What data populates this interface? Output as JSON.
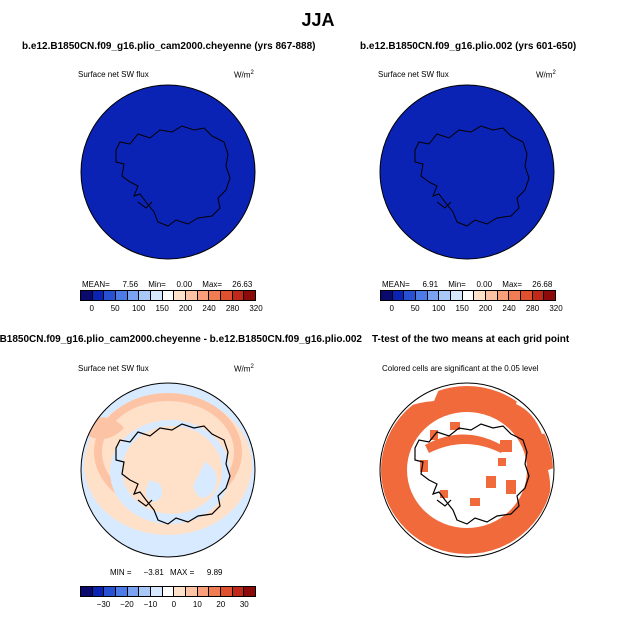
{
  "title": "JJA",
  "colors": {
    "ocean_deep_blue": "#0a23b4",
    "diff_peach": "#ffe0c8",
    "diff_orange_light": "#fcc4a4",
    "diff_blue_light": "#d8eaff",
    "ttest_orange": "#f06a3c",
    "coast": "#000000"
  },
  "panels": {
    "p1": {
      "title": "b.e12.B1850CN.f09_g16.plio_cam2000.cheyenne (yrs 867-888)",
      "subtitle": "Surface net SW flux",
      "units": "W/m",
      "units_sup": "2",
      "stats": {
        "mean_label": "MEAN=",
        "mean": "7.56",
        "min_label": "Min=",
        "min": "0.00",
        "max_label": "Max=",
        "max": "26.63"
      },
      "colorbar_labels": [
        "0",
        "50",
        "100",
        "150",
        "200",
        "240",
        "280",
        "320"
      ]
    },
    "p2": {
      "title": "b.e12.B1850CN.f09_g16.plio.002 (yrs 601-650)",
      "subtitle": "Surface net SW flux",
      "units": "W/m",
      "units_sup": "2",
      "stats": {
        "mean_label": "MEAN=",
        "mean": "6.91",
        "min_label": "Min=",
        "min": "0.00",
        "max_label": "Max=",
        "max": "26.68"
      },
      "colorbar_labels": [
        "0",
        "50",
        "100",
        "150",
        "200",
        "240",
        "280",
        "320"
      ]
    },
    "p3": {
      "title": "B1850CN.f09_g16.plio_cam2000.cheyenne - b.e12.B1850CN.f09_g16.plio.002",
      "subtitle": "Surface net SW flux",
      "units": "W/m",
      "units_sup": "2",
      "stats": {
        "min_label": "MIN =",
        "min": "−3.81",
        "max_label": "MAX =",
        "max": "9.89"
      },
      "colorbar_labels": [
        "−30",
        "−20",
        "−10",
        "0",
        "10",
        "20",
        "30"
      ]
    },
    "p4": {
      "title": "T-test of the two means at each grid point",
      "subtitle": "Colored cells are significant at the 0.05 level"
    }
  },
  "colorbars": {
    "abs": [
      "#0a0a6e",
      "#0a23b4",
      "#2850d2",
      "#4c7ae6",
      "#7aa2f0",
      "#a8c8f8",
      "#d6e8ff",
      "#ffffff",
      "#ffe0c8",
      "#fcc4a4",
      "#f8a07a",
      "#f07c54",
      "#e0502e",
      "#c0281a",
      "#8c0a0a"
    ],
    "diff": [
      "#0a0a6e",
      "#0a23b4",
      "#2850d2",
      "#4c7ae6",
      "#7aa2f0",
      "#a8c8f8",
      "#d6e8ff",
      "#ffffff",
      "#ffe0c8",
      "#fcc4a4",
      "#f8a07a",
      "#f07c54",
      "#e0502e",
      "#c0281a",
      "#8c0a0a"
    ]
  },
  "chart_data": [
    {
      "type": "heatmap",
      "title": "b.e12.B1850CN.f09_g16.plio_cam2000.cheyenne (yrs 867-888)",
      "subtitle": "Surface net SW flux",
      "units": "W/m2",
      "mean": 7.56,
      "min": 0.0,
      "max": 26.63,
      "levels": [
        0,
        50,
        100,
        150,
        200,
        240,
        280,
        320
      ]
    },
    {
      "type": "heatmap",
      "title": "b.e12.B1850CN.f09_g16.plio.002 (yrs 601-650)",
      "subtitle": "Surface net SW flux",
      "units": "W/m2",
      "mean": 6.91,
      "min": 0.0,
      "max": 26.68,
      "levels": [
        0,
        50,
        100,
        150,
        200,
        240,
        280,
        320
      ]
    },
    {
      "type": "heatmap",
      "title": "B1850CN.f09_g16.plio_cam2000.cheyenne - b.e12.B1850CN.f09_g16.plio.002",
      "subtitle": "Surface net SW flux",
      "units": "W/m2",
      "min": -3.81,
      "max": 9.89,
      "levels": [
        -30,
        -20,
        -10,
        0,
        10,
        20,
        30
      ]
    },
    {
      "type": "heatmap",
      "title": "T-test of the two means at each grid point",
      "subtitle": "Colored cells are significant at the 0.05 level"
    }
  ]
}
